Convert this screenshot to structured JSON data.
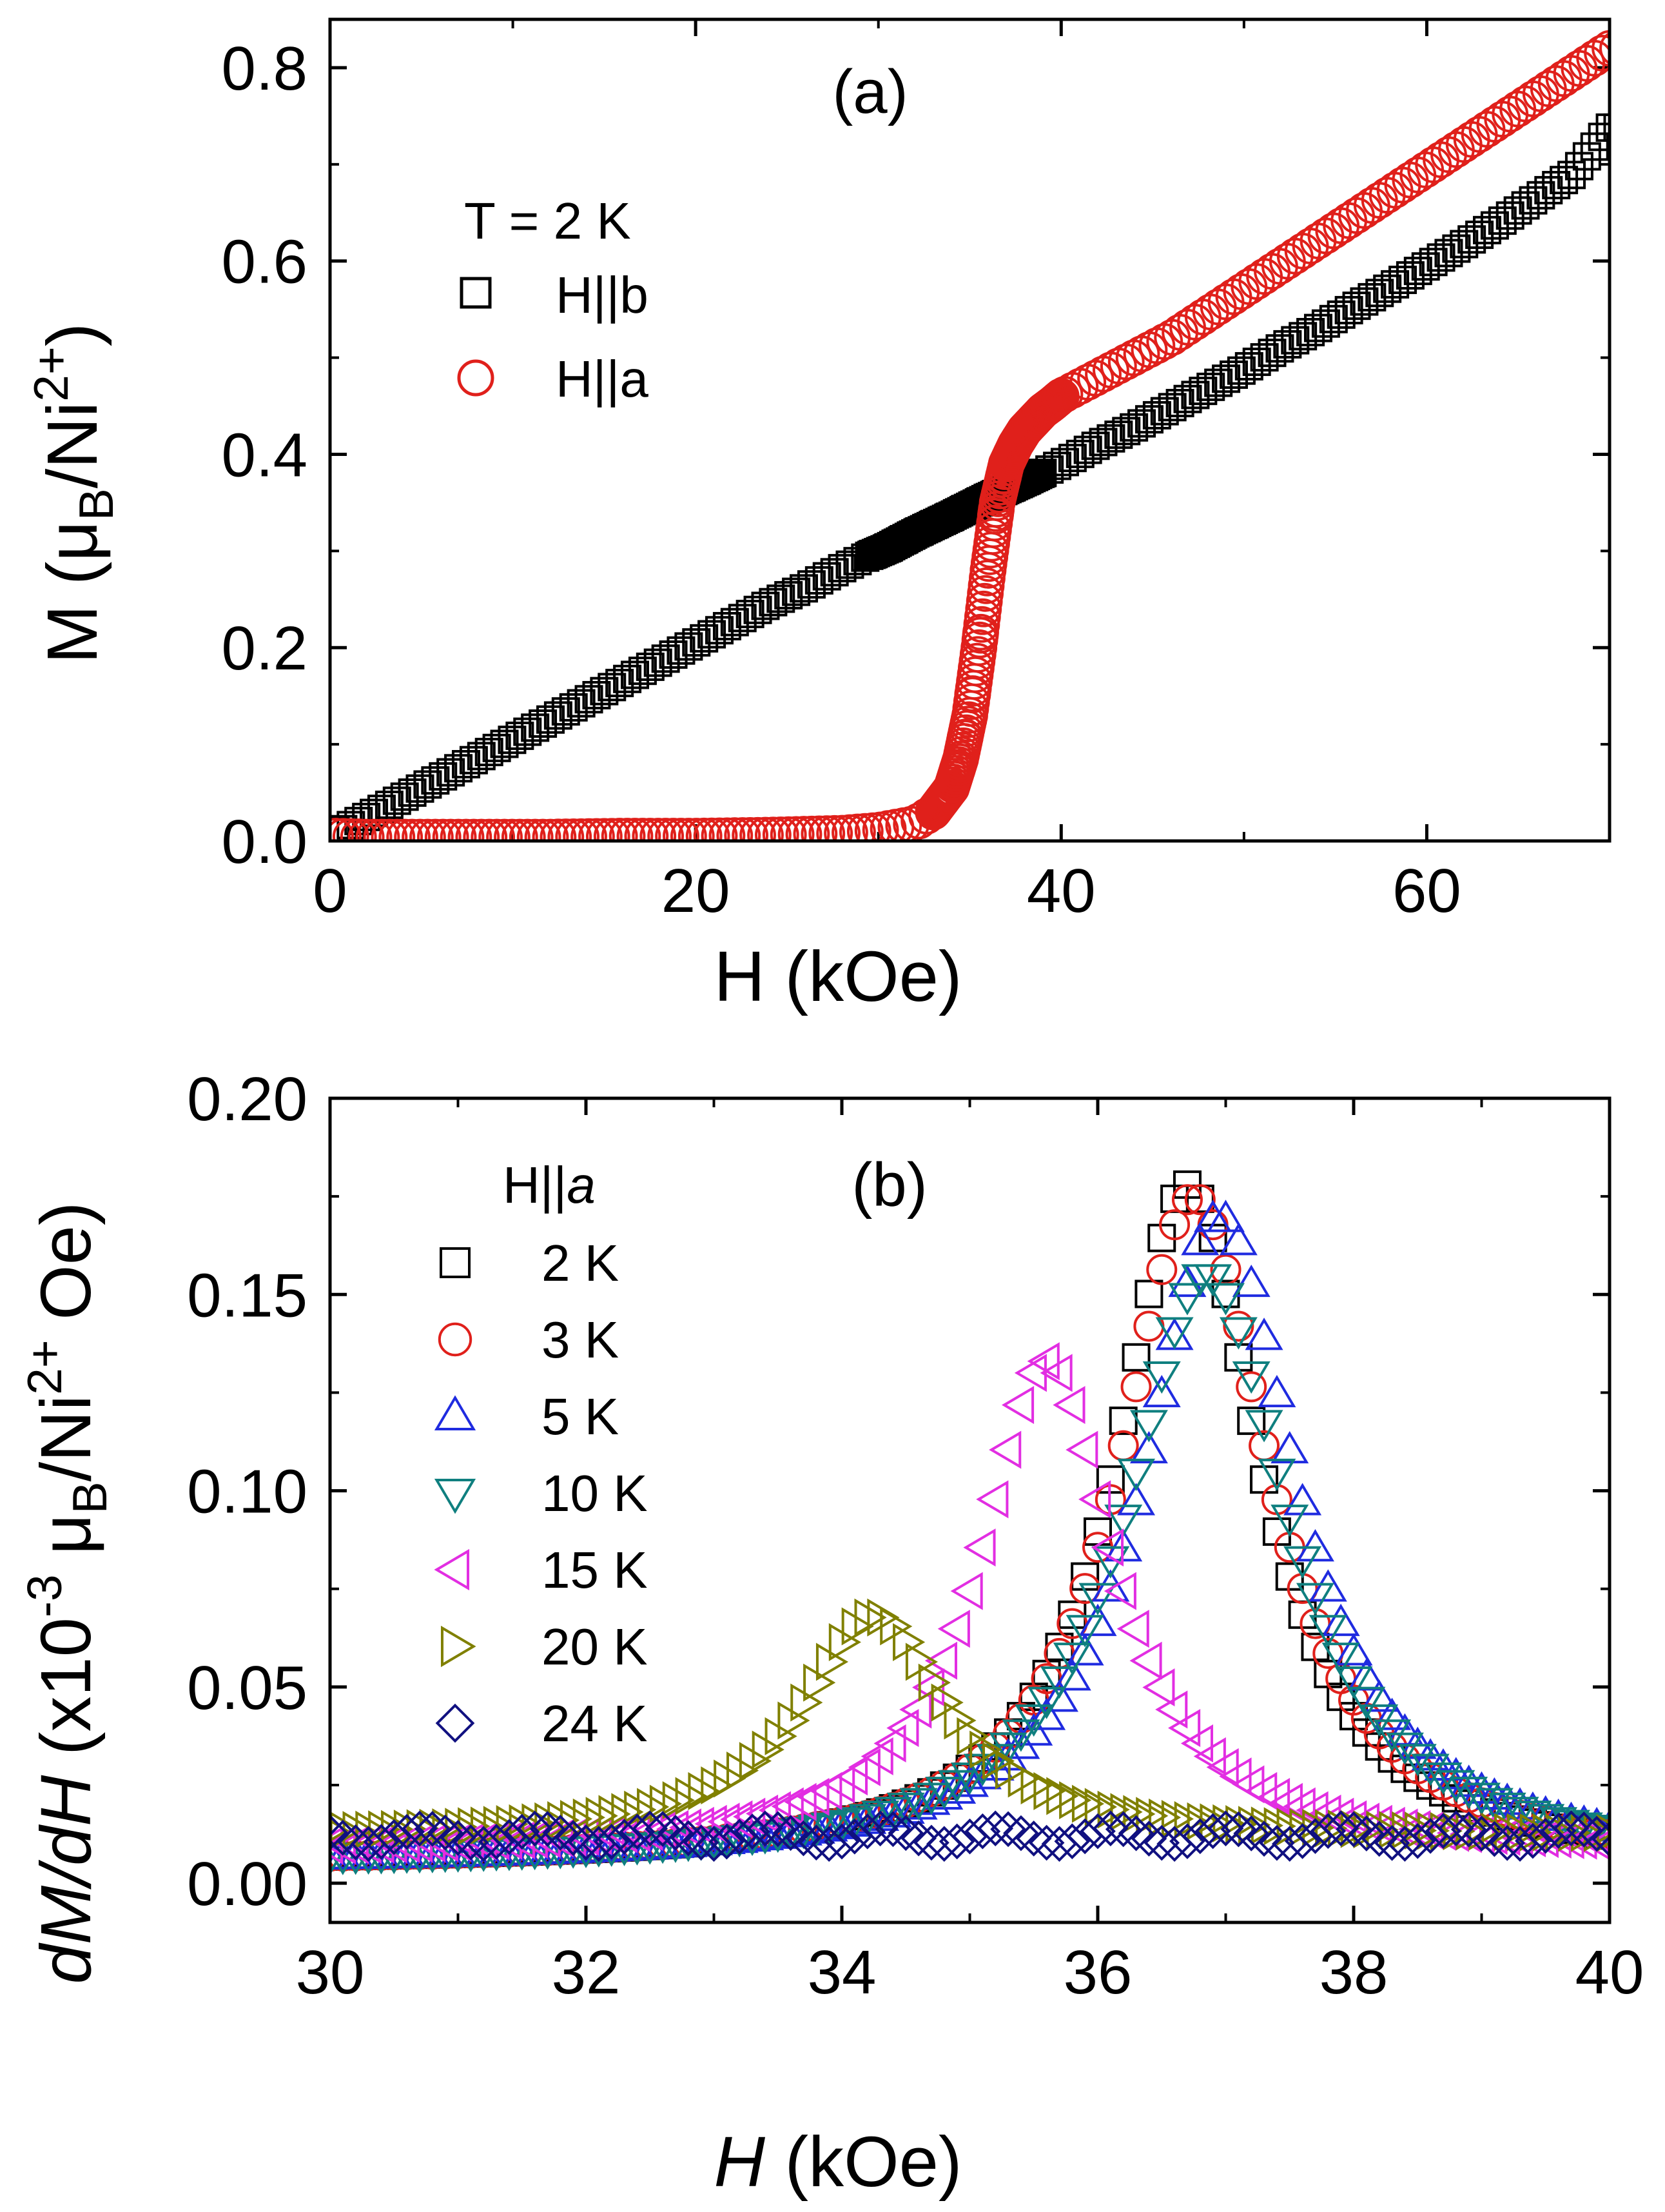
{
  "chart_data": [
    {
      "type": "scatter",
      "panel_label": "(a)",
      "xlabel": "H (kOe)",
      "ylabel_parts": {
        "main": "M (",
        "mu": "μ",
        "sub": "B",
        "mid": "/Ni",
        "sup": "2+",
        "end": ")"
      },
      "xlim": [
        0,
        70
      ],
      "ylim": [
        0,
        0.85
      ],
      "x_ticks": [
        0,
        20,
        40,
        60
      ],
      "x_ticklabels": [
        "0",
        "20",
        "40",
        "60"
      ],
      "y_ticks": [
        0.0,
        0.2,
        0.4,
        0.6,
        0.8
      ],
      "y_ticklabels": [
        "0.0",
        "0.2",
        "0.4",
        "0.6",
        "0.8"
      ],
      "legend_title": "T = 2 K",
      "legend_position": "top-left",
      "series": [
        {
          "name": "H||b",
          "marker": "square",
          "color": "#000000",
          "x": [
            0.5,
            2,
            4,
            6,
            8,
            10,
            12,
            14,
            16,
            18,
            20,
            22,
            24,
            26,
            28,
            29.5,
            30.5,
            32,
            34,
            36,
            38,
            40,
            42,
            44,
            46,
            48,
            50,
            52,
            54,
            56,
            58,
            60,
            62,
            64,
            66,
            68,
            70
          ],
          "y": [
            0.01,
            0.025,
            0.045,
            0.065,
            0.085,
            0.105,
            0.125,
            0.145,
            0.165,
            0.185,
            0.205,
            0.225,
            0.245,
            0.262,
            0.282,
            0.295,
            0.303,
            0.318,
            0.336,
            0.355,
            0.372,
            0.39,
            0.41,
            0.428,
            0.448,
            0.468,
            0.488,
            0.51,
            0.53,
            0.552,
            0.573,
            0.595,
            0.617,
            0.64,
            0.665,
            0.69,
            0.738
          ]
        },
        {
          "name": "H||a",
          "marker": "circle",
          "color": "#e0201b",
          "x": [
            0.5,
            2,
            4,
            8,
            12,
            16,
            20,
            24,
            28,
            30,
            32,
            33,
            34,
            34.5,
            35,
            35.5,
            36,
            36.5,
            37,
            37.5,
            38,
            38.5,
            39,
            39.5,
            40,
            42,
            44,
            46,
            48,
            50,
            52,
            54,
            56,
            58,
            60,
            62,
            64,
            66,
            68,
            70
          ],
          "y": [
            0.005,
            0.004,
            0.004,
            0.004,
            0.004,
            0.005,
            0.005,
            0.006,
            0.008,
            0.011,
            0.018,
            0.03,
            0.055,
            0.085,
            0.13,
            0.2,
            0.28,
            0.35,
            0.39,
            0.41,
            0.425,
            0.435,
            0.445,
            0.452,
            0.46,
            0.48,
            0.5,
            0.52,
            0.545,
            0.57,
            0.595,
            0.62,
            0.645,
            0.67,
            0.695,
            0.72,
            0.745,
            0.77,
            0.795,
            0.82
          ]
        }
      ]
    },
    {
      "type": "scatter",
      "panel_label": "(b)",
      "xlabel_parts": {
        "var": "H",
        "unit": " (kOe)"
      },
      "ylabel_parts": {
        "var": "dM/dH",
        "pre": " (x10",
        "exp": "-3",
        "mu": " μ",
        "sub": "B",
        "mid": "/Ni",
        "sup": "2+",
        "end": " Oe)"
      },
      "xlim": [
        30,
        40
      ],
      "ylim": [
        -0.01,
        0.2
      ],
      "x_ticks": [
        30,
        32,
        34,
        36,
        38,
        40
      ],
      "x_ticklabels": [
        "30",
        "32",
        "34",
        "36",
        "38",
        "40"
      ],
      "y_ticks": [
        0.0,
        0.05,
        0.1,
        0.15,
        0.2
      ],
      "y_ticklabels": [
        "0.00",
        "0.05",
        "0.10",
        "0.15",
        "0.20"
      ],
      "legend_title_parts": {
        "main": "H||",
        "var": "a"
      },
      "legend_position": "top-left",
      "series": [
        {
          "name": "2 K",
          "marker": "square",
          "color": "#000000",
          "peak_x": 36.7,
          "peak_y": 0.178,
          "width": 0.75,
          "base": 0.005
        },
        {
          "name": "3 K",
          "marker": "circle",
          "color": "#e0201b",
          "peak_x": 36.75,
          "peak_y": 0.175,
          "width": 0.78,
          "base": 0.005
        },
        {
          "name": "5 K",
          "marker": "triangle-up",
          "color": "#1f2be0",
          "peak_x": 36.95,
          "peak_y": 0.17,
          "width": 0.8,
          "base": 0.005
        },
        {
          "name": "10 K",
          "marker": "triangle-down",
          "color": "#0f7f7f",
          "peak_x": 36.85,
          "peak_y": 0.155,
          "width": 0.85,
          "base": 0.005
        },
        {
          "name": "15 K",
          "marker": "triangle-left",
          "color": "#e22ee2",
          "peak_x": 35.6,
          "peak_y": 0.133,
          "width": 0.7,
          "base": 0.008
        },
        {
          "name": "20 K",
          "marker": "triangle-right",
          "color": "#808000",
          "peak_x": 34.25,
          "peak_y": 0.068,
          "width": 0.75,
          "base": 0.012
        },
        {
          "name": "24 K",
          "marker": "diamond",
          "color": "#101080",
          "peak_x": 35.0,
          "peak_y": 0.012,
          "width": 5.0,
          "base": 0.0
        }
      ]
    }
  ]
}
